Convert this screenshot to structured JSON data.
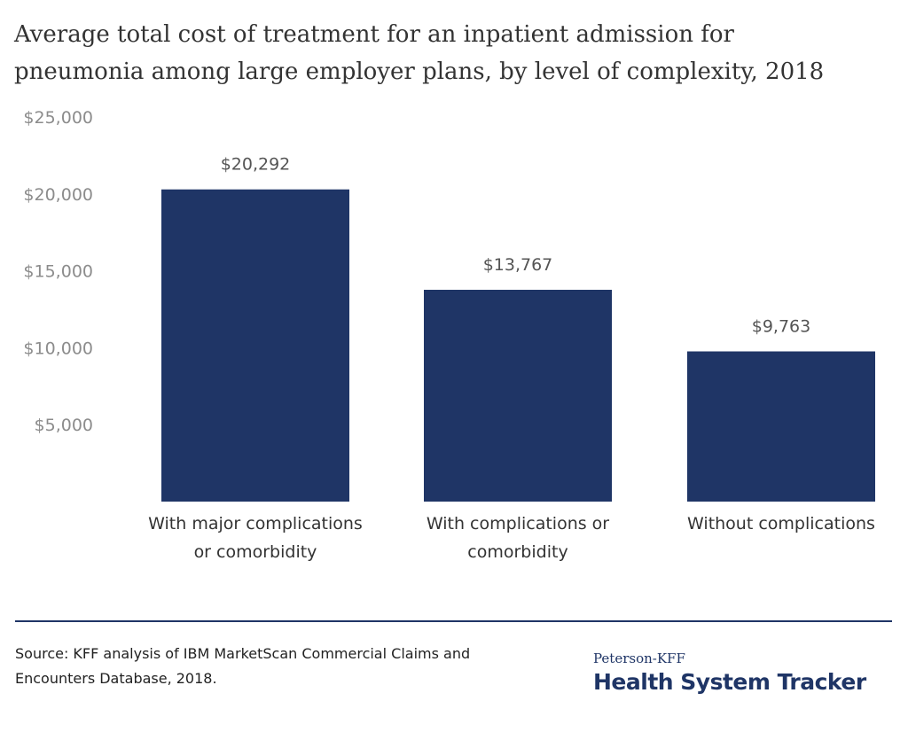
{
  "title_lines": [
    "Average total cost of treatment for an inpatient admission for",
    "pneumonia among large employer plans, by level of complexity, 2018"
  ],
  "colors": {
    "bar": "#1f3566",
    "rule": "#1f3566"
  },
  "chart_data": {
    "type": "bar",
    "title": "Average total cost of treatment for an inpatient admission for pneumonia among large employer plans, by level of complexity, 2018",
    "categories": [
      [
        "With major complications",
        "or comorbidity"
      ],
      [
        "With complications or",
        "comorbidity"
      ],
      [
        "Without complications"
      ]
    ],
    "values": [
      20292,
      13767,
      9763
    ],
    "value_labels": [
      "$20,292",
      "$13,767",
      "$9,763"
    ],
    "y_ticks": [
      5000,
      10000,
      15000,
      20000,
      25000
    ],
    "y_tick_labels": [
      "$5,000",
      "$10,000",
      "$15,000",
      "$20,000",
      "$25,000"
    ],
    "ylim": [
      0,
      25000
    ],
    "grid": false,
    "legend": "none"
  },
  "source": {
    "lines": [
      "Source: KFF analysis of IBM MarketScan Commercial Claims and",
      "Encounters Database, 2018."
    ]
  },
  "logo": {
    "top": "Peterson-KFF",
    "main": "Health System Tracker"
  }
}
